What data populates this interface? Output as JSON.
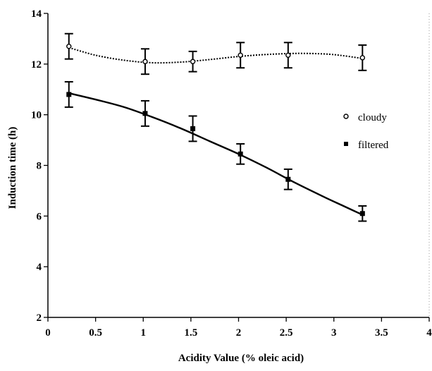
{
  "chart_data": {
    "type": "scatter",
    "xlabel": "Acidity Value (% oleic acid)",
    "ylabel": "Induction time (h)",
    "xlim": [
      0,
      4
    ],
    "ylim": [
      2,
      14
    ],
    "xticks": [
      0,
      0.5,
      1,
      1.5,
      2,
      2.5,
      3,
      3.5,
      4
    ],
    "xtick_labels": [
      "0",
      "0.5",
      "1",
      "1.5",
      "2",
      "2.5",
      "3",
      "3.5",
      "4"
    ],
    "yticks": [
      2,
      4,
      6,
      8,
      10,
      12,
      14
    ],
    "ytick_labels": [
      "2",
      "4",
      "6",
      "8",
      "10",
      "12",
      "14"
    ],
    "grid": false,
    "legend_position": "right",
    "series": [
      {
        "name": "cloudy",
        "marker": "open-circle",
        "line_style": "dotted",
        "x": [
          0.22,
          1.02,
          1.52,
          2.02,
          2.52,
          3.3
        ],
        "y": [
          12.7,
          12.1,
          12.1,
          12.35,
          12.35,
          12.25
        ],
        "error": [
          0.5,
          0.5,
          0.4,
          0.5,
          0.5,
          0.5
        ],
        "fit": [
          [
            0.22,
            12.65
          ],
          [
            0.5,
            12.35
          ],
          [
            0.8,
            12.15
          ],
          [
            1.1,
            12.05
          ],
          [
            1.4,
            12.08
          ],
          [
            1.7,
            12.18
          ],
          [
            2.0,
            12.3
          ],
          [
            2.3,
            12.38
          ],
          [
            2.6,
            12.42
          ],
          [
            2.9,
            12.4
          ],
          [
            3.1,
            12.33
          ],
          [
            3.3,
            12.22
          ]
        ]
      },
      {
        "name": "filtered",
        "marker": "filled-square",
        "line_style": "solid",
        "x": [
          0.22,
          1.02,
          1.52,
          2.02,
          2.52,
          3.3
        ],
        "y": [
          10.8,
          10.05,
          9.45,
          8.45,
          7.45,
          6.1
        ],
        "error": [
          0.5,
          0.5,
          0.5,
          0.4,
          0.4,
          0.3
        ],
        "fit": [
          [
            0.22,
            10.85
          ],
          [
            0.5,
            10.6
          ],
          [
            0.8,
            10.3
          ],
          [
            1.1,
            9.9
          ],
          [
            1.4,
            9.45
          ],
          [
            1.7,
            8.95
          ],
          [
            2.0,
            8.45
          ],
          [
            2.3,
            7.9
          ],
          [
            2.6,
            7.3
          ],
          [
            2.9,
            6.75
          ],
          [
            3.1,
            6.4
          ],
          [
            3.3,
            6.05
          ]
        ]
      }
    ]
  }
}
